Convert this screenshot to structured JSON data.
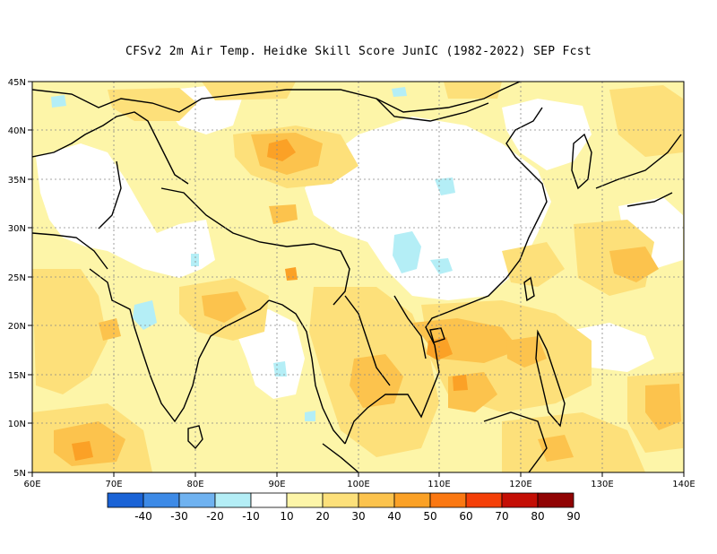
{
  "title": "CFSv2  2m Air Temp. Heidke Skill Score JunIC (1982-2022) SEP Fcst",
  "map": {
    "lon_labels": [
      "60E",
      "70E",
      "80E",
      "90E",
      "100E",
      "110E",
      "120E",
      "130E",
      "140E"
    ],
    "lat_labels": [
      "45N",
      "40N",
      "35N",
      "30N",
      "25N",
      "20N",
      "15N",
      "10N",
      "5N"
    ],
    "lon_range": [
      60,
      140
    ],
    "lat_range": [
      5,
      45
    ],
    "gridlines": "dotted"
  },
  "colorbar": {
    "labels": [
      "-40",
      "-30",
      "-20",
      "-10",
      "10",
      "20",
      "30",
      "40",
      "50",
      "60",
      "70",
      "80",
      "90"
    ],
    "colors": [
      "#1a63d6",
      "#3d8ae6",
      "#6fb2f0",
      "#b4eef6",
      "#ffffff",
      "#fdf5a8",
      "#fde07a",
      "#fcc34d",
      "#fba126",
      "#fb7812",
      "#f43f08",
      "#c40e05",
      "#900303"
    ]
  }
}
